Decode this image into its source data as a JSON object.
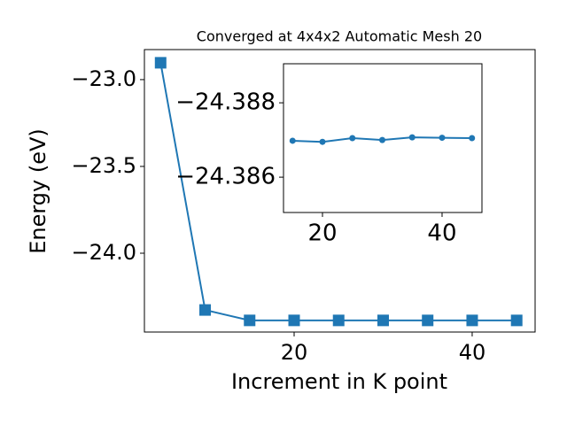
{
  "chart_data": [
    {
      "type": "line",
      "title": "Converged at 4x4x2 Automatic Mesh 20",
      "xlabel": "Increment in K point",
      "ylabel": "Energy (eV)",
      "x": [
        5,
        10,
        15,
        20,
        25,
        30,
        35,
        40,
        45
      ],
      "values": [
        -22.903,
        -24.327,
        -24.38698,
        -24.38695,
        -24.38705,
        -24.387,
        -24.38707,
        -24.38706,
        -24.38705
      ],
      "color": "#1f77b4",
      "marker": "square",
      "xlim": [
        3.18,
        47.07
      ],
      "xticks": [
        20,
        40
      ],
      "ylim": [
        -24.454,
        -22.827
      ],
      "yticks": [
        {
          "value": -24.0,
          "label": "−24.0"
        },
        {
          "value": -23.5,
          "label": "−23.5"
        },
        {
          "value": -23.0,
          "label": "−23.0"
        }
      ]
    },
    {
      "type": "line",
      "x": [
        15,
        20,
        25,
        30,
        35,
        40,
        45
      ],
      "values": [
        -24.38698,
        -24.38695,
        -24.38705,
        -24.387,
        -24.38707,
        -24.38706,
        -24.38705
      ],
      "color": "#1f77b4",
      "marker": "circle",
      "xlim": [
        13.48,
        46.67
      ],
      "xticks": [
        20,
        40
      ],
      "ylim": [
        -24.38505,
        -24.38905
      ],
      "yticks": [
        {
          "value": -24.386,
          "label": "−24.386"
        },
        {
          "value": -24.388,
          "label": "−24.388"
        }
      ]
    }
  ]
}
